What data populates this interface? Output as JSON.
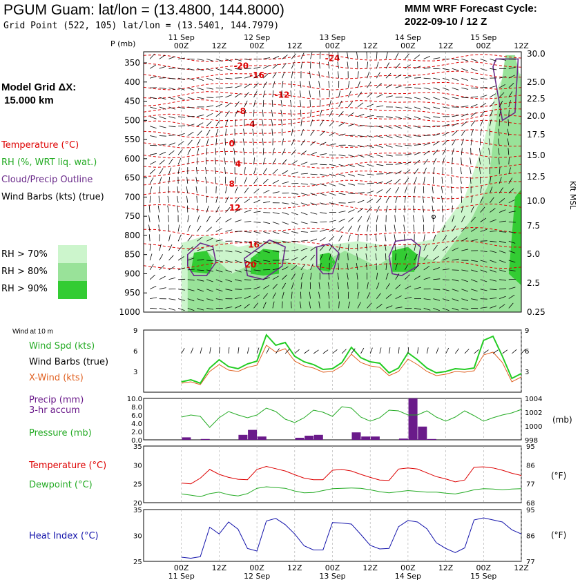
{
  "header": {
    "title": "PGUM Guam:  lat/lon = (13.4800, 144.8000)",
    "subtitle": "Grid Point (522, 105) lat/lon = (13.5401, 144.7979)",
    "cycle_line1": "MMM WRF Forecast Cycle:",
    "cycle_line2": "2022-09-10 / 12  Z"
  },
  "sidebar": {
    "grid_label": "Model Grid ΔX:",
    "grid_value": "15.000 km",
    "temperature": "Temperature (°C)",
    "rh": "RH (%, WRT liq. wat.)",
    "cloud": "Cloud/Precip Outline",
    "barbs": "Wind Barbs (kts) (true)",
    "rh_legend": [
      "RH > 70%",
      "RH > 80%",
      "RH > 90%"
    ],
    "wind_at": "Wind at 10 m",
    "wind_spd": "Wind Spd (kts)",
    "wind_barbs": "Wind Barbs (true)",
    "xwind": "X-Wind (kts)",
    "precip1": "Precip (mm)",
    "precip2": "3-hr accum",
    "pressure": "Pressure (mb)",
    "temp2": "Temperature (°C)",
    "dewpoint": "Dewpoint (°C)",
    "heat_index": "Heat Index (°C)"
  },
  "colors": {
    "temperature": "#dd0000",
    "rh": "#22aa22",
    "cloud": "#6a2a8a",
    "heat_index": "#1111aa",
    "xwind": "#e06020",
    "precip_bar": "#6a1a8a",
    "rh70": "#ccf5cc",
    "rh80": "#99e299",
    "rh90": "#33cc33"
  },
  "time_axis": {
    "ticks": [
      "00Z",
      "12Z",
      "00Z",
      "12Z",
      "00Z",
      "12Z",
      "00Z",
      "12Z",
      "00Z",
      "12Z"
    ],
    "days": [
      "11 Sep",
      "12 Sep",
      "13 Sep",
      "14 Sep",
      "15 Sep"
    ]
  },
  "chart_data": [
    {
      "type": "heatmap",
      "name": "time-height",
      "ylabel_left": "P (mb)",
      "ylabel_right": "Kft MSL",
      "pressure_ticks": [
        350,
        400,
        450,
        500,
        550,
        600,
        650,
        700,
        750,
        800,
        850,
        900,
        950,
        1000
      ],
      "height_ticks": [
        "30.0",
        "25.0",
        "22.5",
        "20.0",
        "17.5",
        "15.0",
        "12.5",
        "10.0",
        "7.5",
        "5.0",
        "2.5",
        "0.25"
      ],
      "isotherm_labels": [
        {
          "text": "-24",
          "hour": 48,
          "p": 338
        },
        {
          "text": "-20",
          "hour": 19,
          "p": 358
        },
        {
          "text": "-16",
          "hour": 24,
          "p": 382
        },
        {
          "text": "-12",
          "hour": 32,
          "p": 434
        },
        {
          "text": "-8",
          "hour": 19,
          "p": 476
        },
        {
          "text": "-4",
          "hour": 22,
          "p": 510
        },
        {
          "text": "0",
          "hour": 16,
          "p": 561
        },
        {
          "text": "4",
          "hour": 18,
          "p": 614
        },
        {
          "text": "8",
          "hour": 16,
          "p": 666
        },
        {
          "text": "12",
          "hour": 17,
          "p": 728
        },
        {
          "text": "16",
          "hour": 23,
          "p": 824
        },
        {
          "text": "20",
          "hour": 22,
          "p": 877
        }
      ]
    },
    {
      "type": "line",
      "name": "wind",
      "ylim": [
        0,
        9
      ],
      "yticks": [
        3,
        6,
        9
      ],
      "hours": [
        0,
        3,
        6,
        9,
        12,
        15,
        18,
        21,
        24,
        27,
        30,
        33,
        36,
        39,
        42,
        45,
        48,
        51,
        54,
        57,
        60,
        63,
        66,
        69,
        72,
        75,
        78,
        81,
        84,
        87,
        90,
        93,
        96,
        99,
        102,
        105,
        108
      ],
      "series": [
        {
          "name": "Wind Spd (kts)",
          "values": [
            1.5,
            1.8,
            1.3,
            3.5,
            4.7,
            3.7,
            3.4,
            4.1,
            4.5,
            8.3,
            6.8,
            7.2,
            5.2,
            4.4,
            4.0,
            3.3,
            3.4,
            4.3,
            6.5,
            5.0,
            4.4,
            4.2,
            2.8,
            3.5,
            5.7,
            4.7,
            3.5,
            2.8,
            3.0,
            3.4,
            3.3,
            3.5,
            7.5,
            8.1,
            5.2,
            2.0,
            2.7
          ]
        },
        {
          "name": "X-Wind (kts)",
          "values": [
            1.3,
            1.5,
            1.1,
            3.0,
            4.0,
            3.2,
            3.0,
            3.6,
            3.9,
            6.8,
            5.8,
            6.3,
            4.5,
            3.8,
            3.5,
            2.9,
            3.0,
            3.8,
            5.5,
            4.3,
            3.8,
            3.6,
            2.4,
            3.0,
            4.8,
            4.0,
            3.0,
            2.4,
            2.6,
            3.0,
            2.9,
            3.1,
            5.4,
            5.8,
            4.3,
            1.5,
            2.2
          ]
        }
      ]
    },
    {
      "type": "bar",
      "name": "precip-pressure",
      "ylim": [
        0,
        10
      ],
      "yticks": [
        "0.0",
        "2.0",
        "4.0",
        "6.0",
        "8.0",
        "10.0"
      ],
      "pressure_ylim": [
        998,
        1004
      ],
      "pressure_ticks": [
        "998",
        "1000",
        "1002",
        "1004"
      ],
      "ylabel_right": "(mb)",
      "precip_hours": [
        3,
        9,
        21,
        24,
        27,
        39,
        42,
        45,
        57,
        60,
        63,
        72,
        75,
        78,
        81
      ],
      "precip": [
        0.6,
        0.2,
        1.2,
        2.4,
        0.8,
        0.5,
        1.0,
        1.2,
        1.8,
        0.8,
        0.8,
        0.3,
        10.0,
        3.2,
        0.2
      ],
      "pressure_hours": [
        0,
        3,
        6,
        9,
        12,
        15,
        18,
        21,
        24,
        27,
        30,
        33,
        36,
        39,
        42,
        45,
        48,
        51,
        54,
        57,
        60,
        63,
        66,
        69,
        72,
        75,
        78,
        81,
        84,
        87,
        90,
        93,
        96,
        99,
        102,
        105,
        108
      ],
      "pressure": [
        1001.3,
        1001.6,
        1001.4,
        999.8,
        1001.2,
        1002.1,
        1001.6,
        1001.2,
        1001.6,
        1002.6,
        1002.1,
        1001.0,
        1000.5,
        1001.2,
        1002.3,
        1002.0,
        1001.4,
        1002.8,
        1002.6,
        1001.3,
        1000.7,
        1001.2,
        1002.3,
        1002.2,
        1001.6,
        1001.6,
        1002.2,
        1001.3,
        1000.7,
        1001.3,
        1002.2,
        1001.5,
        1000.7,
        1001.2,
        1001.6,
        1001.9,
        1002.4
      ]
    },
    {
      "type": "line",
      "name": "temperature-dewpoint",
      "ylim": [
        20,
        35
      ],
      "yticks": [
        20,
        25,
        30,
        35
      ],
      "fticks": [
        "68",
        "77",
        "86",
        "95"
      ],
      "ylabel_right": "(°F)",
      "hours": [
        0,
        3,
        6,
        9,
        12,
        15,
        18,
        21,
        24,
        27,
        30,
        33,
        36,
        39,
        42,
        45,
        48,
        51,
        54,
        57,
        60,
        63,
        66,
        69,
        72,
        75,
        78,
        81,
        84,
        87,
        90,
        93,
        96,
        99,
        102,
        105,
        108
      ],
      "series": [
        {
          "name": "Temperature (°C)",
          "values": [
            25.2,
            25.0,
            26.5,
            28.8,
            27.5,
            26.7,
            26.2,
            26.1,
            28.8,
            29.6,
            29.0,
            28.4,
            27.4,
            26.5,
            26.1,
            26.1,
            28.6,
            28.8,
            28.4,
            27.5,
            26.7,
            26.0,
            25.9,
            28.9,
            29.2,
            28.9,
            27.9,
            26.9,
            26.3,
            25.5,
            26.0,
            29.4,
            29.5,
            29.2,
            28.6,
            27.8,
            27.2
          ]
        },
        {
          "name": "Dewpoint (°C)",
          "values": [
            22.3,
            22.0,
            21.6,
            22.4,
            22.8,
            22.1,
            21.8,
            22.4,
            23.8,
            24.2,
            24.0,
            23.8,
            23.1,
            22.6,
            22.7,
            23.2,
            23.7,
            23.8,
            23.9,
            23.8,
            23.4,
            22.9,
            22.6,
            22.9,
            23.2,
            23.0,
            22.8,
            22.8,
            22.5,
            22.3,
            22.8,
            23.4,
            23.7,
            23.6,
            23.4,
            23.6,
            23.7
          ]
        }
      ]
    },
    {
      "type": "line",
      "name": "heat-index",
      "ylim": [
        25,
        35
      ],
      "yticks": [
        25,
        30,
        35
      ],
      "fticks": [
        "77",
        "86",
        "95"
      ],
      "ylabel_right": "(°F)",
      "hours": [
        0,
        3,
        6,
        9,
        12,
        15,
        18,
        21,
        24,
        27,
        30,
        33,
        36,
        39,
        42,
        45,
        48,
        51,
        54,
        57,
        60,
        63,
        66,
        69,
        72,
        75,
        78,
        81,
        84,
        87,
        90,
        93,
        96,
        99,
        102,
        105,
        108
      ],
      "series": [
        {
          "name": "Heat Index (°C)",
          "values": [
            25.8,
            25.6,
            25.9,
            31.6,
            30.3,
            32.6,
            31.2,
            27.5,
            27.0,
            32.8,
            33.3,
            32.1,
            30.3,
            28.0,
            27.2,
            27.2,
            32.5,
            32.4,
            32.2,
            30.2,
            28.1,
            27.4,
            27.5,
            31.7,
            32.9,
            32.6,
            31.3,
            28.6,
            27.5,
            26.7,
            27.6,
            33.0,
            33.4,
            33.0,
            32.6,
            31.1,
            30.3
          ]
        }
      ]
    }
  ]
}
